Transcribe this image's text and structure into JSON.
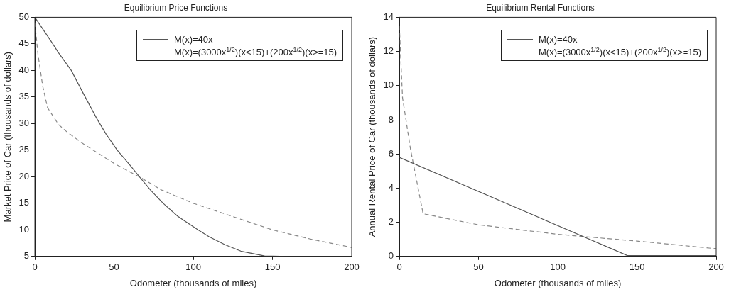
{
  "chart_data": [
    {
      "type": "line",
      "title": "Equilibrium Price Functions",
      "xlabel": "Odometer (thousands of miles)",
      "ylabel": "Market Price of Car (thousands of dollars)",
      "xlim": [
        0,
        200
      ],
      "xticks": [
        0,
        50,
        100,
        150,
        200
      ],
      "ylim": [
        5,
        50
      ],
      "yticks": [
        5,
        10,
        15,
        20,
        25,
        30,
        35,
        40,
        45,
        50
      ],
      "legend": "top right",
      "series": [
        {
          "name": "M(x)=40x",
          "color": "#555555",
          "line_style": "solid",
          "x": [
            0,
            10,
            15,
            23,
            30,
            39,
            45,
            52,
            60,
            66,
            73,
            81,
            90,
            103,
            110,
            120,
            130,
            145,
            160,
            180,
            200
          ],
          "values": [
            50,
            45.6,
            43.3,
            40,
            36,
            31,
            28,
            25,
            22.2,
            20,
            17.5,
            15,
            12.6,
            10,
            8.7,
            7.2,
            6,
            5.1,
            5,
            5,
            5
          ]
        },
        {
          "name": "M(x)=(3000x$^{1/2}$)(x<15)+(200x$^{1/2}$)(x>=15)",
          "color": "#888888",
          "line_style": "dashed",
          "x": [
            0,
            2,
            5,
            8,
            15,
            20,
            30,
            50,
            67,
            80,
            100,
            125,
            150,
            175,
            200
          ],
          "values": [
            49,
            43,
            37,
            33,
            29.8,
            28.5,
            26.3,
            22.5,
            19.8,
            17.5,
            15,
            12.5,
            10,
            8.2,
            6.7
          ]
        }
      ]
    },
    {
      "type": "line",
      "title": "Equilibrium Rental Functions",
      "xlabel": "Odometer (thousands of miles)",
      "ylabel": "Annual Rental Price of Car (thousands of dollars)",
      "xlim": [
        0,
        200
      ],
      "xticks": [
        0,
        50,
        100,
        150,
        200
      ],
      "ylim": [
        0,
        14
      ],
      "yticks": [
        0,
        2,
        4,
        6,
        8,
        10,
        12,
        14
      ],
      "legend": "top right",
      "series": [
        {
          "name": "M(x)=40x",
          "color": "#555555",
          "line_style": "solid",
          "x": [
            0,
            144,
            200
          ],
          "values": [
            5.8,
            0.05,
            0.05
          ]
        },
        {
          "name": "M(x)=(3000x$^{1/2}$)(x<15)+(200x$^{1/2}$)(x>=15)",
          "color": "#888888",
          "line_style": "dashed",
          "x": [
            0,
            2,
            7,
            15,
            50,
            100,
            118,
            150,
            200
          ],
          "values": [
            13.5,
            9.3,
            6.3,
            2.5,
            1.85,
            1.3,
            1.15,
            0.9,
            0.45
          ]
        }
      ]
    }
  ]
}
